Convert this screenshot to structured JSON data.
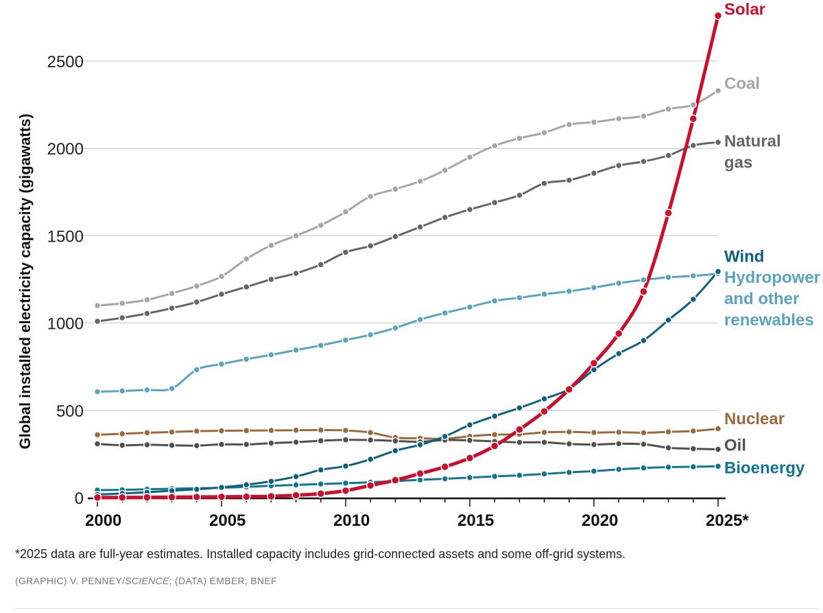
{
  "chart_data": {
    "type": "line",
    "ylabel": "Global installed electricity capacity (gigawatts)",
    "xlabel": "",
    "xlim": [
      2000,
      2025
    ],
    "ylim": [
      0,
      2800
    ],
    "grid": true,
    "legend": "direct labels at right end of lines",
    "x": [
      2000,
      2001,
      2002,
      2003,
      2004,
      2005,
      2006,
      2007,
      2008,
      2009,
      2010,
      2011,
      2012,
      2013,
      2014,
      2015,
      2016,
      2017,
      2018,
      2019,
      2020,
      2021,
      2022,
      2023,
      2024,
      2025
    ],
    "x_ticks": [
      2000,
      2005,
      2010,
      2015,
      2020,
      2025
    ],
    "x_tick_labels": [
      "2000",
      "2005",
      "2010",
      "2015",
      "2020",
      "2025*"
    ],
    "y_ticks": [
      0,
      500,
      1000,
      1500,
      2000,
      2500
    ],
    "y_tick_labels": [
      "0",
      "500",
      "1000",
      "1500",
      "2000",
      "2500"
    ],
    "series": [
      {
        "name": "Coal",
        "color": "#a6a6a6",
        "width": 3,
        "label_lines": [
          "Coal"
        ],
        "label_y": 2340,
        "values": [
          1100,
          1113,
          1133,
          1170,
          1212,
          1267,
          1367,
          1445,
          1500,
          1560,
          1637,
          1725,
          1767,
          1812,
          1875,
          1950,
          2015,
          2058,
          2090,
          2137,
          2150,
          2170,
          2185,
          2225,
          2250,
          2330
        ]
      },
      {
        "name": "Natural gas",
        "color": "#666666",
        "width": 3,
        "label_lines": [
          "Natural",
          "gas"
        ],
        "label_y": 2010,
        "values": [
          1010,
          1030,
          1055,
          1085,
          1120,
          1165,
          1207,
          1250,
          1285,
          1335,
          1405,
          1442,
          1495,
          1550,
          1605,
          1650,
          1690,
          1732,
          1800,
          1818,
          1858,
          1902,
          1925,
          1960,
          2017,
          2035
        ]
      },
      {
        "name": "Hydropower and other renewables",
        "color": "#5ba4bf",
        "width": 3,
        "label_lines": [
          "Hydropower",
          "and other",
          "renewables"
        ],
        "label_y": 1230,
        "values": [
          607,
          611,
          617,
          625,
          733,
          765,
          793,
          818,
          845,
          872,
          902,
          933,
          972,
          1020,
          1058,
          1092,
          1127,
          1145,
          1165,
          1182,
          1203,
          1228,
          1247,
          1262,
          1270,
          1283
        ]
      },
      {
        "name": "Nuclear",
        "color": "#9b6a3c",
        "width": 3,
        "label_lines": [
          "Nuclear"
        ],
        "label_y": 420,
        "values": [
          360,
          366,
          372,
          376,
          381,
          383,
          384,
          385,
          386,
          387,
          385,
          373,
          344,
          340,
          337,
          352,
          361,
          363,
          374,
          377,
          373,
          375,
          372,
          377,
          382,
          395
        ]
      },
      {
        "name": "Oil",
        "color": "#505050",
        "width": 3,
        "label_lines": [
          "Oil"
        ],
        "label_y": 270,
        "values": [
          308,
          300,
          303,
          300,
          298,
          305,
          305,
          312,
          318,
          326,
          331,
          330,
          325,
          320,
          330,
          328,
          322,
          317,
          317,
          308,
          304,
          309,
          306,
          286,
          280,
          277
        ]
      },
      {
        "name": "Bioenergy",
        "color": "#117591",
        "width": 3,
        "label_lines": [
          "Bioenergy"
        ],
        "label_y": 140,
        "values": [
          43,
          45,
          48,
          51,
          54,
          57,
          62,
          68,
          73,
          78,
          83,
          88,
          95,
          102,
          108,
          115,
          122,
          128,
          136,
          145,
          152,
          162,
          170,
          175,
          177,
          180
        ]
      },
      {
        "name": "Wind",
        "color": "#0d6080",
        "width": 3,
        "label_lines": [
          "Wind"
        ],
        "label_y": 1350,
        "values": [
          18,
          24,
          31,
          40,
          48,
          59,
          74,
          94,
          121,
          159,
          181,
          220,
          269,
          303,
          351,
          417,
          467,
          514,
          566,
          622,
          733,
          825,
          900,
          1017,
          1136,
          1295
        ]
      },
      {
        "name": "Solar",
        "color": "#c8102e",
        "width": 5,
        "label_lines": [
          "Solar"
        ],
        "label_y": 2765,
        "values": [
          1,
          1,
          2,
          3,
          4,
          5,
          6,
          8,
          14,
          23,
          40,
          70,
          100,
          138,
          177,
          227,
          296,
          390,
          494,
          620,
          770,
          940,
          1180,
          1630,
          2170,
          2760
        ]
      }
    ]
  },
  "footnote": "*2025 data are full-year estimates. Installed capacity includes grid-connected assets and some off-grid systems.",
  "credit": {
    "prefix": "(GRAPHIC) V. PENNEY/",
    "publication": "SCIENCE",
    "suffix": "; (DATA) EMBER; BNEF"
  }
}
